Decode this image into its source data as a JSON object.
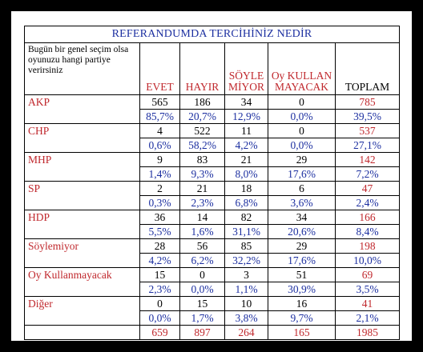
{
  "title": "REFERANDUMDA TERCİHİNİZ NEDİR",
  "question": "Bugün bir genel seçim olsa oyunuzu hangi partiye verirsiniz",
  "columns": [
    "EVET",
    "HAYIR",
    "SÖYLE MİYOR",
    "Oy KULLAN MAYACAK",
    "TOPLAM"
  ],
  "rows": [
    {
      "party": "AKP",
      "counts": [
        "565",
        "186",
        "34",
        "0",
        "785"
      ],
      "percents": [
        "85,7%",
        "20,7%",
        "12,9%",
        "0,0%",
        "39,5%"
      ]
    },
    {
      "party": "CHP",
      "counts": [
        "4",
        "522",
        "11",
        "0",
        "537"
      ],
      "percents": [
        "0,6%",
        "58,2%",
        "4,2%",
        "0,0%",
        "27,1%"
      ]
    },
    {
      "party": "MHP",
      "counts": [
        "9",
        "83",
        "21",
        "29",
        "142"
      ],
      "percents": [
        "1,4%",
        "9,3%",
        "8,0%",
        "17,6%",
        "7,2%"
      ]
    },
    {
      "party": "SP",
      "counts": [
        "2",
        "21",
        "18",
        "6",
        "47"
      ],
      "percents": [
        "0,3%",
        "2,3%",
        "6,8%",
        "3,6%",
        "2,4%"
      ]
    },
    {
      "party": "HDP",
      "counts": [
        "36",
        "14",
        "82",
        "34",
        "166"
      ],
      "percents": [
        "5,5%",
        "1,6%",
        "31,1%",
        "20,6%",
        "8,4%"
      ]
    },
    {
      "party": "Söylemiyor",
      "counts": [
        "28",
        "56",
        "85",
        "29",
        "198"
      ],
      "percents": [
        "4,2%",
        "6,2%",
        "32,2%",
        "17,6%",
        "10,0%"
      ]
    },
    {
      "party": "Oy Kullanmayacak",
      "counts": [
        "15",
        "0",
        "3",
        "51",
        "69"
      ],
      "percents": [
        "2,3%",
        "0,0%",
        "1,1%",
        "30,9%",
        "3,5%"
      ]
    },
    {
      "party": "Diğer",
      "counts": [
        "0",
        "15",
        "10",
        "16",
        "41"
      ],
      "percents": [
        "0,0%",
        "1,7%",
        "3,8%",
        "9,7%",
        "2,1%"
      ]
    }
  ],
  "totals": [
    "659",
    "897",
    "264",
    "165",
    "1985"
  ],
  "colors": {
    "red": "#c0282d",
    "blue": "#1c2fa0",
    "black": "#000000"
  }
}
